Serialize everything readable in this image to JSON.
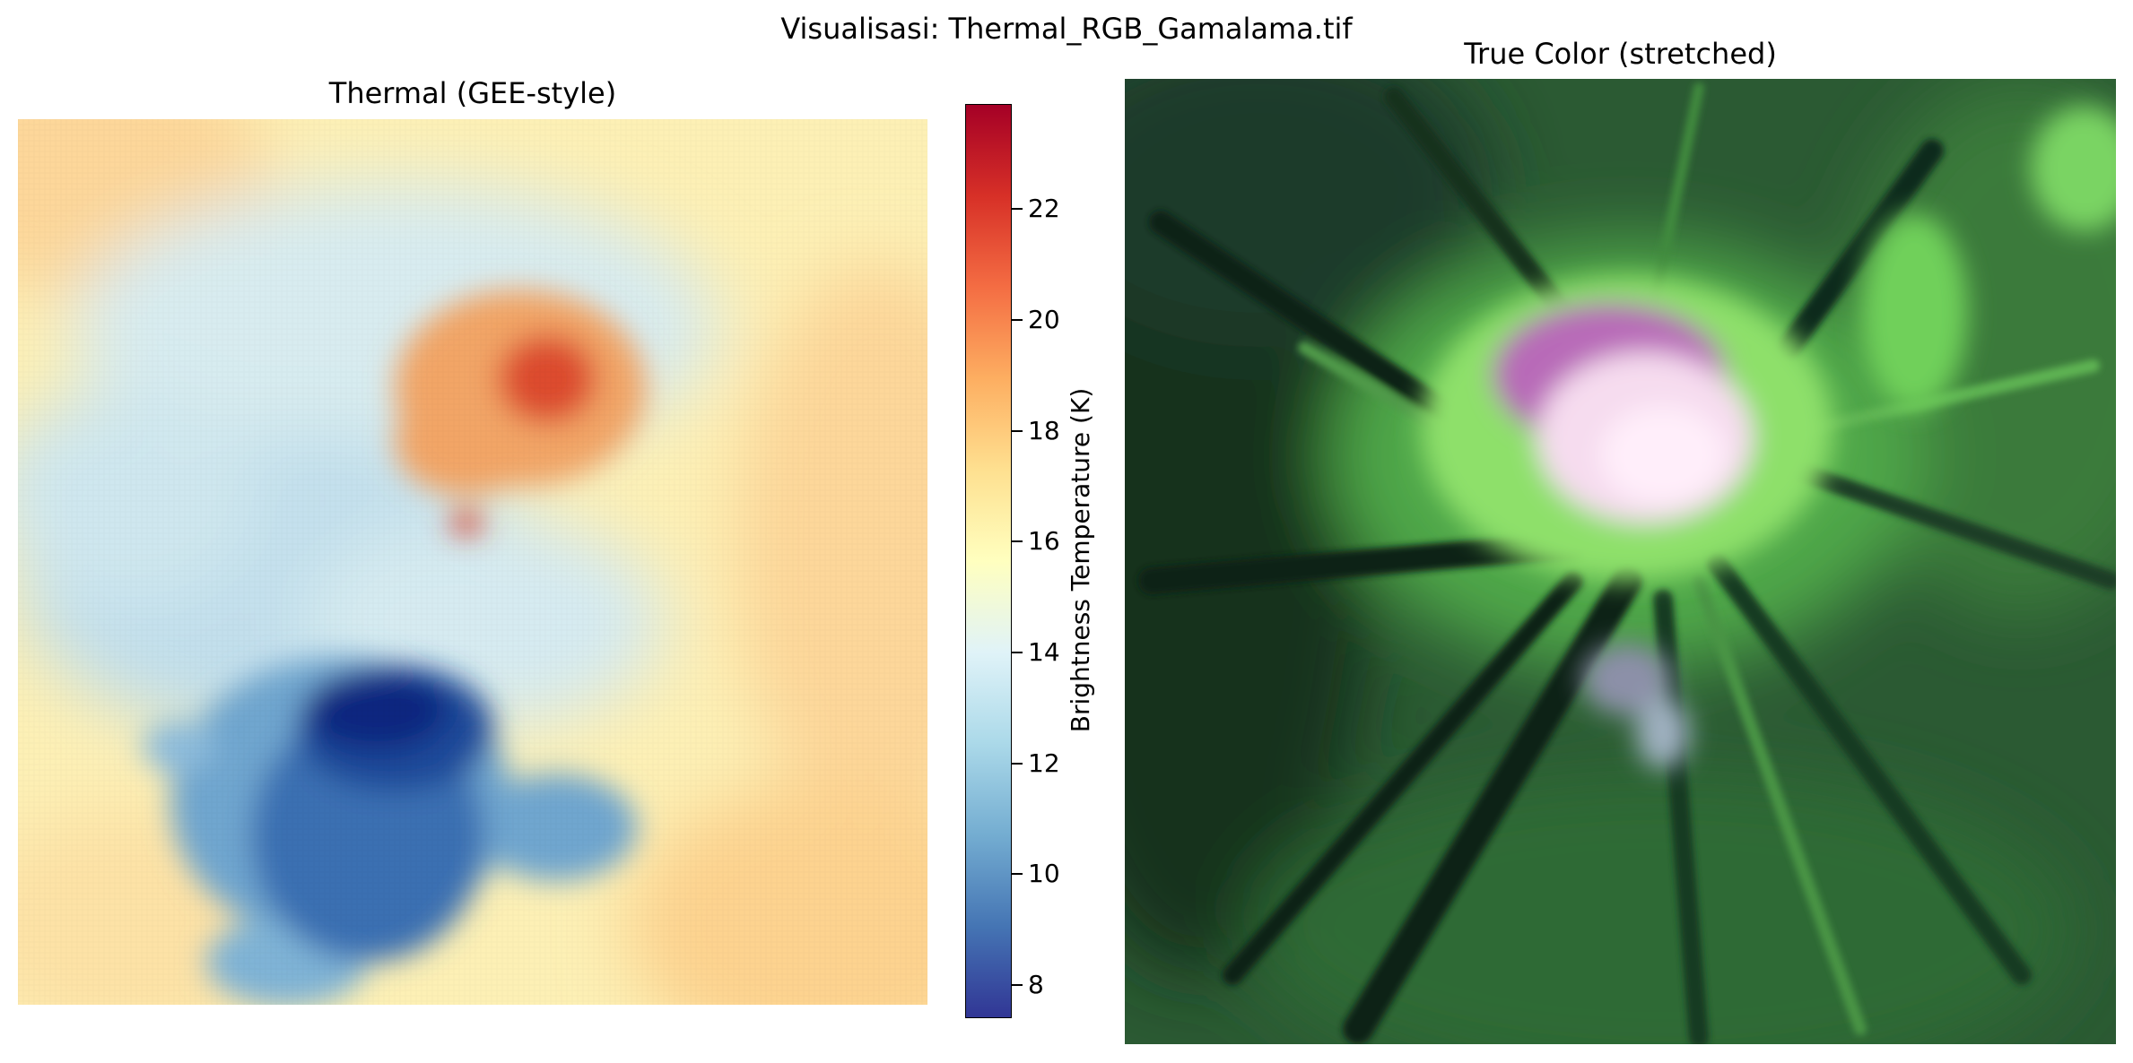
{
  "figure": {
    "title": "Visualisasi: Thermal_RGB_Gamalama.tif"
  },
  "thermal": {
    "title": "Thermal (GEE-style)",
    "colormap": "RdYlBu_r",
    "colors": {
      "background": "#fdf3b8",
      "cool_edge": "#fde0a0",
      "blue_light": "#c9e3ee",
      "blue_mid": "#74add1",
      "blue_dark": "#2c5ea8",
      "blue_darkest": "#0b237d",
      "warm": "#f0a060",
      "hot": "#d73027"
    },
    "colorbar": {
      "label": "Brightness Temperature (K)",
      "min": 7.4,
      "max": 23.9,
      "ticks": [
        {
          "value": 8,
          "label": "8"
        },
        {
          "value": 10,
          "label": "10"
        },
        {
          "value": 12,
          "label": "12"
        },
        {
          "value": 14,
          "label": "14"
        },
        {
          "value": 16,
          "label": "16"
        },
        {
          "value": 18,
          "label": "18"
        },
        {
          "value": 20,
          "label": "20"
        },
        {
          "value": 22,
          "label": "22"
        }
      ]
    }
  },
  "truecolor": {
    "title": "True Color (stretched)",
    "colors": {
      "dark_forest": "#1e3a26",
      "green": "#3f8a3a",
      "bright_green": "#7fdc5e",
      "pink_crater": "#c87ac8",
      "white_crater": "#f4e0f0",
      "shadow": "#0f2418"
    }
  }
}
